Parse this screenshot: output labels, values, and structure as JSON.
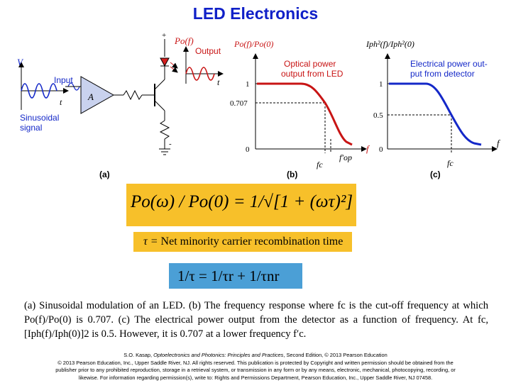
{
  "title": "LED Electronics",
  "figure": {
    "panel_a": {
      "label": "(a)",
      "v_axis": "V",
      "t_axis": "t",
      "input_label": "Input",
      "amp_label": "A",
      "signal_label_1": "Sinusoidal",
      "signal_label_2": "signal",
      "plus": "+",
      "minus": "-",
      "po_label": "Po(f)",
      "output_label": "Output",
      "t_out": "t"
    },
    "panel_b": {
      "label": "(b)",
      "ylabel": "Po(f)/Po(0)",
      "legend_1": "Optical power",
      "legend_2": "output from LED",
      "ticks_y": [
        "1",
        "0.707",
        "0"
      ],
      "x_axis": "f",
      "fc": "fc",
      "fop": "f′op",
      "curve_color": "#c81414"
    },
    "panel_c": {
      "label": "(c)",
      "ylabel": "Iph²(f)/Iph²(0)",
      "legend_1": "Electrical power out-",
      "legend_2": "put from detector",
      "ticks_y": [
        "1",
        "0.5",
        "0"
      ],
      "x_axis": "f",
      "fc": "fc",
      "curve_color": "#1428c8"
    }
  },
  "equation_main": "Po(ω) / Po(0) = 1/√[1 + (ωτ)²]",
  "tau_definition": {
    "symbol": "τ = ",
    "text": "Net minority carrier recombination time"
  },
  "recombination": "1/τ = 1/τr + 1/τnr",
  "caption": "(a) Sinusoidal modulation of an LED. (b) The frequency response where fc is the cut-off frequency at which Po(f)/Po(0) is 0.707. (c) The electrical power output from the detector as a function of frequency. At fc, [Iph(f)/Iph(0)]2 is 0.5. However, it is 0.707 at a lower frequency f′c.",
  "credit": {
    "author": "S.O. Kasap, ",
    "book": "Optoelectronics and Photonics: Principles and Practices",
    "rest": ", Second Edition, © 2013 Pearson Education",
    "line2": "© 2013 Pearson Education, Inc., Upper Saddle River, NJ. All rights reserved. This publication is protected by Copyright and written permission should be obtained from the",
    "line3": "publisher prior to any prohibited reproduction, storage in a retrieval system, or transmission in any form or by any means, electronic, mechanical, photocopying, recording, or",
    "line4": "likewise. For information regarding permission(s), write to: Rights and Permissions Department, Pearson Education, Inc., Upper Saddle River, NJ 07458."
  }
}
